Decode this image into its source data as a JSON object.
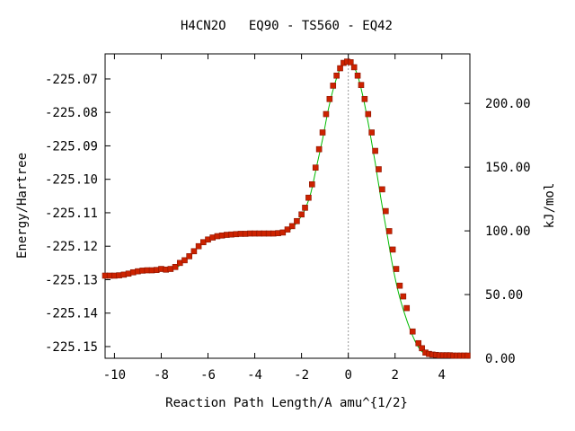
{
  "chart_data": {
    "type": "scatter",
    "title": "H4CN2O   EQ90 - TS560 - EQ42",
    "xlabel": "Reaction Path Length/A amu^{1/2}",
    "ylabel": "Energy/Hartree",
    "y2label": "kJ/mol",
    "xlim": [
      -10.4,
      5.2
    ],
    "ylim": [
      -225.1535,
      -225.0625
    ],
    "y2lim": [
      0.0,
      238.9
    ],
    "grid": false,
    "legend": "none",
    "x_ticks": [
      -10,
      -8,
      -6,
      -4,
      -2,
      0,
      2,
      4
    ],
    "x_tick_labels": [
      "-10",
      "-8",
      "-6",
      "-4",
      "-2",
      "0",
      "2",
      "4"
    ],
    "y_ticks": [
      -225.07,
      -225.08,
      -225.09,
      -225.1,
      -225.11,
      -225.12,
      -225.13,
      -225.14,
      -225.15
    ],
    "y_tick_labels": [
      "-225.07",
      "-225.08",
      "-225.09",
      "-225.10",
      "-225.11",
      "-225.12",
      "-225.13",
      "-225.14",
      "-225.15"
    ],
    "y2_ticks": [
      0,
      50,
      100,
      150,
      200
    ],
    "y2_tick_labels": [
      "0.00",
      "50.00",
      "100.00",
      "150.00",
      "200.00"
    ],
    "ts_marker_x": 0.0,
    "colors": {
      "points": "#cc2200",
      "line": "#00bb00",
      "marker_line": "#999999"
    },
    "curve": [
      {
        "x": -10.4,
        "y": -225.1288
      },
      {
        "x": -9.8,
        "y": -225.1287
      },
      {
        "x": -9.4,
        "y": -225.1282
      },
      {
        "x": -9.0,
        "y": -225.1275
      },
      {
        "x": -8.5,
        "y": -225.1272
      },
      {
        "x": -8.0,
        "y": -225.127
      },
      {
        "x": -7.6,
        "y": -225.1268
      },
      {
        "x": -7.3,
        "y": -225.1262
      },
      {
        "x": -7.0,
        "y": -225.1244
      },
      {
        "x": -6.7,
        "y": -225.1225
      },
      {
        "x": -6.4,
        "y": -225.12
      },
      {
        "x": -6.1,
        "y": -225.1183
      },
      {
        "x": -5.7,
        "y": -225.1172
      },
      {
        "x": -5.0,
        "y": -225.1165
      },
      {
        "x": -4.0,
        "y": -225.1162
      },
      {
        "x": -3.2,
        "y": -225.1162
      },
      {
        "x": -2.7,
        "y": -225.1158
      },
      {
        "x": -2.4,
        "y": -225.1145
      },
      {
        "x": -2.1,
        "y": -225.112
      },
      {
        "x": -1.85,
        "y": -225.109
      },
      {
        "x": -1.6,
        "y": -225.104
      },
      {
        "x": -1.35,
        "y": -225.096
      },
      {
        "x": -1.1,
        "y": -225.088
      },
      {
        "x": -0.85,
        "y": -225.079
      },
      {
        "x": -0.6,
        "y": -225.072
      },
      {
        "x": -0.35,
        "y": -225.067
      },
      {
        "x": -0.1,
        "y": -225.065
      },
      {
        "x": 0.0,
        "y": -225.0648
      },
      {
        "x": 0.15,
        "y": -225.0652
      },
      {
        "x": 0.4,
        "y": -225.069
      },
      {
        "x": 0.65,
        "y": -225.076
      },
      {
        "x": 0.9,
        "y": -225.085
      },
      {
        "x": 1.15,
        "y": -225.095
      },
      {
        "x": 1.4,
        "y": -225.106
      },
      {
        "x": 1.65,
        "y": -225.116
      },
      {
        "x": 1.9,
        "y": -225.126
      },
      {
        "x": 2.15,
        "y": -225.134
      },
      {
        "x": 2.4,
        "y": -225.14
      },
      {
        "x": 2.65,
        "y": -225.145
      },
      {
        "x": 2.9,
        "y": -225.149
      },
      {
        "x": 3.15,
        "y": -225.1515
      },
      {
        "x": 3.4,
        "y": -225.1523
      },
      {
        "x": 4.0,
        "y": -225.1526
      },
      {
        "x": 5.2,
        "y": -225.1527
      }
    ],
    "points": [
      {
        "x": -10.4,
        "y": -225.1288
      },
      {
        "x": -10.2,
        "y": -225.1288
      },
      {
        "x": -10.0,
        "y": -225.1288
      },
      {
        "x": -9.8,
        "y": -225.1287
      },
      {
        "x": -9.6,
        "y": -225.1285
      },
      {
        "x": -9.4,
        "y": -225.1282
      },
      {
        "x": -9.2,
        "y": -225.1278
      },
      {
        "x": -9.0,
        "y": -225.1275
      },
      {
        "x": -8.8,
        "y": -225.1273
      },
      {
        "x": -8.6,
        "y": -225.1272
      },
      {
        "x": -8.4,
        "y": -225.1272
      },
      {
        "x": -8.2,
        "y": -225.1271
      },
      {
        "x": -8.0,
        "y": -225.1268
      },
      {
        "x": -7.8,
        "y": -225.127
      },
      {
        "x": -7.6,
        "y": -225.1268
      },
      {
        "x": -7.4,
        "y": -225.1262
      },
      {
        "x": -7.2,
        "y": -225.125
      },
      {
        "x": -7.0,
        "y": -225.1242
      },
      {
        "x": -6.8,
        "y": -225.123
      },
      {
        "x": -6.6,
        "y": -225.1215
      },
      {
        "x": -6.4,
        "y": -225.12
      },
      {
        "x": -6.2,
        "y": -225.1188
      },
      {
        "x": -6.0,
        "y": -225.118
      },
      {
        "x": -5.8,
        "y": -225.1174
      },
      {
        "x": -5.6,
        "y": -225.117
      },
      {
        "x": -5.4,
        "y": -225.1168
      },
      {
        "x": -5.2,
        "y": -225.1166
      },
      {
        "x": -5.0,
        "y": -225.1165
      },
      {
        "x": -4.8,
        "y": -225.1164
      },
      {
        "x": -4.6,
        "y": -225.1163
      },
      {
        "x": -4.4,
        "y": -225.1163
      },
      {
        "x": -4.2,
        "y": -225.1162
      },
      {
        "x": -4.0,
        "y": -225.1162
      },
      {
        "x": -3.8,
        "y": -225.1162
      },
      {
        "x": -3.6,
        "y": -225.1162
      },
      {
        "x": -3.4,
        "y": -225.1162
      },
      {
        "x": -3.2,
        "y": -225.1162
      },
      {
        "x": -3.0,
        "y": -225.1161
      },
      {
        "x": -2.8,
        "y": -225.1159
      },
      {
        "x": -2.6,
        "y": -225.115
      },
      {
        "x": -2.4,
        "y": -225.114
      },
      {
        "x": -2.2,
        "y": -225.1125
      },
      {
        "x": -2.0,
        "y": -225.1105
      },
      {
        "x": -1.85,
        "y": -225.1085
      },
      {
        "x": -1.7,
        "y": -225.1055
      },
      {
        "x": -1.55,
        "y": -225.1015
      },
      {
        "x": -1.4,
        "y": -225.0965
      },
      {
        "x": -1.25,
        "y": -225.091
      },
      {
        "x": -1.1,
        "y": -225.086
      },
      {
        "x": -0.95,
        "y": -225.0805
      },
      {
        "x": -0.8,
        "y": -225.076
      },
      {
        "x": -0.65,
        "y": -225.072
      },
      {
        "x": -0.5,
        "y": -225.069
      },
      {
        "x": -0.35,
        "y": -225.0668
      },
      {
        "x": -0.2,
        "y": -225.0652
      },
      {
        "x": -0.05,
        "y": -225.0648
      },
      {
        "x": 0.1,
        "y": -225.065
      },
      {
        "x": 0.25,
        "y": -225.0665
      },
      {
        "x": 0.4,
        "y": -225.069
      },
      {
        "x": 0.55,
        "y": -225.0718
      },
      {
        "x": 0.7,
        "y": -225.076
      },
      {
        "x": 0.85,
        "y": -225.0805
      },
      {
        "x": 1.0,
        "y": -225.086
      },
      {
        "x": 1.15,
        "y": -225.0915
      },
      {
        "x": 1.3,
        "y": -225.097
      },
      {
        "x": 1.45,
        "y": -225.103
      },
      {
        "x": 1.6,
        "y": -225.1095
      },
      {
        "x": 1.75,
        "y": -225.1155
      },
      {
        "x": 1.9,
        "y": -225.121
      },
      {
        "x": 2.05,
        "y": -225.1268
      },
      {
        "x": 2.2,
        "y": -225.1318
      },
      {
        "x": 2.35,
        "y": -225.135
      },
      {
        "x": 2.5,
        "y": -225.1385
      },
      {
        "x": 2.75,
        "y": -225.1455
      },
      {
        "x": 3.0,
        "y": -225.149
      },
      {
        "x": 3.15,
        "y": -225.1505
      },
      {
        "x": 3.3,
        "y": -225.1518
      },
      {
        "x": 3.45,
        "y": -225.1522
      },
      {
        "x": 3.6,
        "y": -225.1524
      },
      {
        "x": 3.75,
        "y": -225.1525
      },
      {
        "x": 3.9,
        "y": -225.1526
      },
      {
        "x": 4.05,
        "y": -225.1526
      },
      {
        "x": 4.2,
        "y": -225.1526
      },
      {
        "x": 4.35,
        "y": -225.1526
      },
      {
        "x": 4.5,
        "y": -225.1527
      },
      {
        "x": 4.65,
        "y": -225.1527
      },
      {
        "x": 4.8,
        "y": -225.1527
      },
      {
        "x": 4.95,
        "y": -225.1527
      },
      {
        "x": 5.1,
        "y": -225.1527
      }
    ]
  }
}
